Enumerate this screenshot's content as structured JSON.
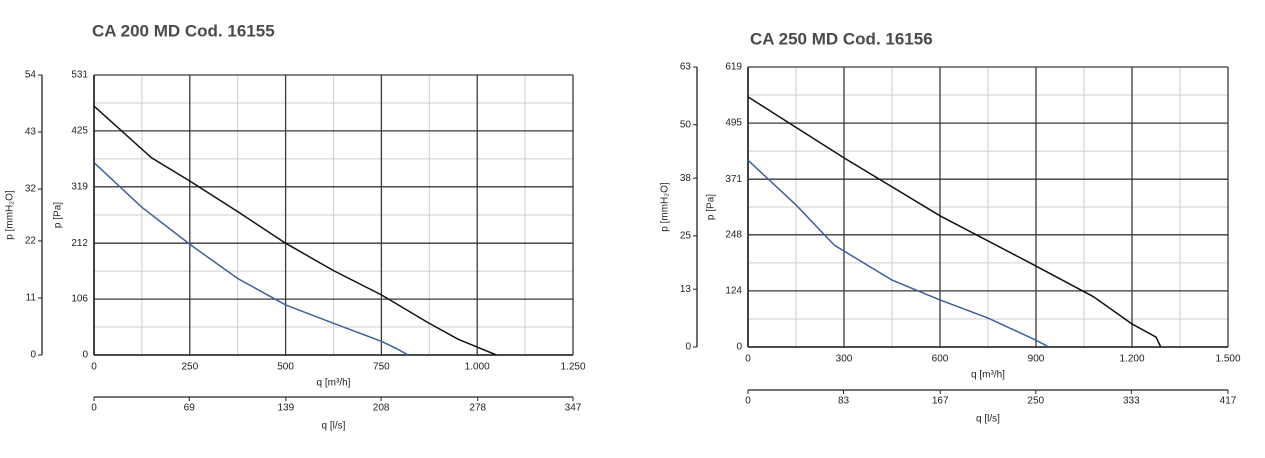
{
  "chart_data": [
    {
      "type": "line",
      "title": "CA 200 MD  Cod. 16155",
      "xlabel": "q [m³/h]",
      "x2label": "q [l/s]",
      "ylabel": "p [Pa]",
      "y2label": "p [mmH₂O]",
      "xlim": [
        0,
        1250
      ],
      "xticks": [
        0,
        250,
        500,
        750,
        {
          "value": 1000,
          "label": "1.000"
        },
        {
          "value": 1250,
          "label": "1.250"
        }
      ],
      "x2lim": [
        0,
        347
      ],
      "x2ticks": [
        0,
        69,
        139,
        208,
        278,
        347
      ],
      "ylim": [
        0,
        531
      ],
      "yticks": [
        0,
        106,
        212,
        319,
        425,
        531
      ],
      "y2lim": [
        0,
        54
      ],
      "y2ticks": [
        0,
        11,
        22,
        32,
        43,
        54
      ],
      "grid": true,
      "minor_grid": true,
      "series": [
        {
          "color": "#111111",
          "x": [
            0,
            150,
            250,
            375,
            500,
            625,
            750,
            875,
            950,
            1000,
            1050
          ],
          "values": [
            472,
            374,
            330,
            272,
            212,
            160,
            114,
            60,
            30,
            15,
            0
          ]
        },
        {
          "color": "#3f5f9e",
          "x": [
            0,
            125,
            250,
            375,
            500,
            625,
            750,
            790,
            820
          ],
          "values": [
            365,
            280,
            210,
            145,
            95,
            60,
            26,
            12,
            0
          ]
        }
      ]
    },
    {
      "type": "line",
      "title": "CA 250 MD Cod. 16156",
      "xlabel": "q [m³/h]",
      "x2label": "q [l/s]",
      "ylabel": "p [Pa]",
      "y2label": "p [mmH₂O]",
      "xlim": [
        0,
        1500
      ],
      "xticks": [
        0,
        300,
        600,
        900,
        {
          "value": 1200,
          "label": "1.200"
        },
        {
          "value": 1500,
          "label": "1.500"
        }
      ],
      "x2lim": [
        0,
        417
      ],
      "x2ticks": [
        0,
        83,
        167,
        250,
        333,
        417
      ],
      "ylim": [
        0,
        619
      ],
      "yticks": [
        0,
        124,
        248,
        371,
        495,
        619
      ],
      "y2lim": [
        0,
        63
      ],
      "y2ticks": [
        0,
        13,
        25,
        38,
        50,
        63
      ],
      "grid": true,
      "minor_grid": true,
      "series": [
        {
          "color": "#111111",
          "x": [
            0,
            300,
            600,
            900,
            1080,
            1200,
            1275,
            1290
          ],
          "values": [
            553,
            418,
            290,
            179,
            111,
            51,
            22,
            0
          ]
        },
        {
          "color": "#3f5f9e",
          "x": [
            0,
            150,
            270,
            450,
            600,
            750,
            900,
            940
          ],
          "values": [
            413,
            314,
            225,
            148,
            104,
            64,
            15,
            0
          ]
        }
      ]
    }
  ]
}
